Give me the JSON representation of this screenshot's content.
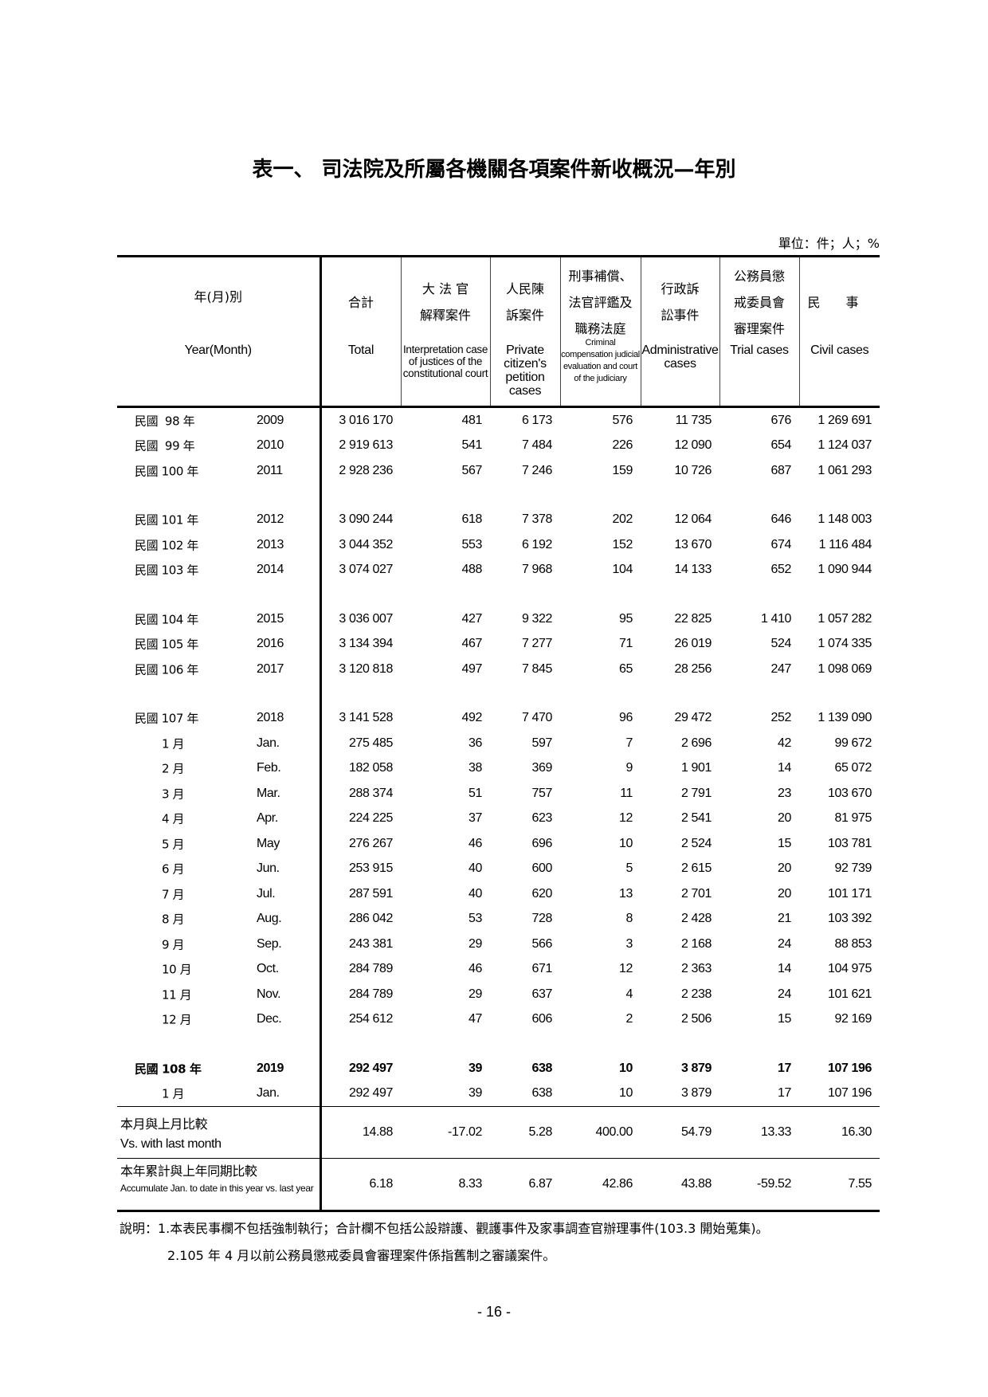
{
  "title": "表一、 司法院及所屬各機關各項案件新收概況—年別",
  "unit": "單位：件；人；%",
  "columns": [
    {
      "zh": "年(月)別",
      "en": "Year(Month)"
    },
    {
      "zh": "合計",
      "en": "Total"
    },
    {
      "zh": "大 法 官\n解釋案件",
      "en": "Interpretation case of justices of the constitutional court"
    },
    {
      "zh": "人民陳\n訴案件",
      "en": "Private citizen's petition cases"
    },
    {
      "zh": "刑事補償、\n法官評鑑及\n職務法庭",
      "en": "Criminal compensation judicial evaluation and court of the judiciary"
    },
    {
      "zh": "行政訴\n訟事件",
      "en": "Administrative cases"
    },
    {
      "zh": "公務員懲\n戒委員會\n審理案件",
      "en": "Trial cases"
    },
    {
      "zh": "民　　事",
      "en": "Civil cases"
    }
  ],
  "rows": [
    {
      "zh": "民國  98 年",
      "en": "2009",
      "values": [
        "3 016 170",
        "481",
        "6 173",
        "576",
        "11 735",
        "676",
        "1 269 691"
      ]
    },
    {
      "zh": "民國  99 年",
      "en": "2010",
      "values": [
        "2 919 613",
        "541",
        "7 484",
        "226",
        "12 090",
        "654",
        "1 124 037"
      ]
    },
    {
      "zh": "民國 100 年",
      "en": "2011",
      "values": [
        "2 928 236",
        "567",
        "7 246",
        "159",
        "10 726",
        "687",
        "1 061 293"
      ]
    },
    {
      "spacer": true
    },
    {
      "zh": "民國 101 年",
      "en": "2012",
      "values": [
        "3 090 244",
        "618",
        "7 378",
        "202",
        "12 064",
        "646",
        "1 148 003"
      ]
    },
    {
      "zh": "民國 102 年",
      "en": "2013",
      "values": [
        "3 044 352",
        "553",
        "6 192",
        "152",
        "13 670",
        "674",
        "1 116 484"
      ]
    },
    {
      "zh": "民國 103 年",
      "en": "2014",
      "values": [
        "3 074 027",
        "488",
        "7 968",
        "104",
        "14 133",
        "652",
        "1 090 944"
      ]
    },
    {
      "spacer": true
    },
    {
      "zh": "民國 104 年",
      "en": "2015",
      "values": [
        "3 036 007",
        "427",
        "9 322",
        "95",
        "22 825",
        "1 410",
        "1 057 282"
      ]
    },
    {
      "zh": "民國 105 年",
      "en": "2016",
      "values": [
        "3 134 394",
        "467",
        "7 277",
        "71",
        "26 019",
        "524",
        "1 074 335"
      ]
    },
    {
      "zh": "民國 106 年",
      "en": "2017",
      "values": [
        "3 120 818",
        "497",
        "7 845",
        "65",
        "28 256",
        "247",
        "1 098 069"
      ]
    },
    {
      "spacer": true
    },
    {
      "zh": "民國 107 年",
      "en": "2018",
      "values": [
        "3 141 528",
        "492",
        "7 470",
        "96",
        "29 472",
        "252",
        "1 139 090"
      ]
    },
    {
      "zh": "1 月",
      "en": "Jan.",
      "month": true,
      "values": [
        "275 485",
        "36",
        "597",
        "7",
        "2 696",
        "42",
        "99 672"
      ]
    },
    {
      "zh": "2 月",
      "en": "Feb.",
      "month": true,
      "values": [
        "182 058",
        "38",
        "369",
        "9",
        "1 901",
        "14",
        "65 072"
      ]
    },
    {
      "zh": "3 月",
      "en": "Mar.",
      "month": true,
      "values": [
        "288 374",
        "51",
        "757",
        "11",
        "2 791",
        "23",
        "103 670"
      ]
    },
    {
      "zh": "4 月",
      "en": "Apr.",
      "month": true,
      "values": [
        "224 225",
        "37",
        "623",
        "12",
        "2 541",
        "20",
        "81 975"
      ]
    },
    {
      "zh": "5 月",
      "en": "May",
      "month": true,
      "values": [
        "276 267",
        "46",
        "696",
        "10",
        "2 524",
        "15",
        "103 781"
      ]
    },
    {
      "zh": "6 月",
      "en": "Jun.",
      "month": true,
      "values": [
        "253 915",
        "40",
        "600",
        "5",
        "2 615",
        "20",
        "92 739"
      ]
    },
    {
      "zh": "7 月",
      "en": "Jul.",
      "month": true,
      "values": [
        "287 591",
        "40",
        "620",
        "13",
        "2 701",
        "20",
        "101 171"
      ]
    },
    {
      "zh": "8 月",
      "en": "Aug.",
      "month": true,
      "values": [
        "286 042",
        "53",
        "728",
        "8",
        "2 428",
        "21",
        "103 392"
      ]
    },
    {
      "zh": "9 月",
      "en": "Sep.",
      "month": true,
      "values": [
        "243 381",
        "29",
        "566",
        "3",
        "2 168",
        "24",
        "88 853"
      ]
    },
    {
      "zh": "10 月",
      "en": "Oct.",
      "month": true,
      "values": [
        "284 789",
        "46",
        "671",
        "12",
        "2 363",
        "14",
        "104 975"
      ]
    },
    {
      "zh": "11 月",
      "en": "Nov.",
      "month": true,
      "values": [
        "284 789",
        "29",
        "637",
        "4",
        "2 238",
        "24",
        "101 621"
      ]
    },
    {
      "zh": "12 月",
      "en": "Dec.",
      "month": true,
      "values": [
        "254 612",
        "47",
        "606",
        "2",
        "2 506",
        "15",
        "92 169"
      ]
    },
    {
      "spacer": true
    },
    {
      "zh": "民國 108 年",
      "en": "2019",
      "bold": true,
      "values": [
        "292 497",
        "39",
        "638",
        "10",
        "3 879",
        "17",
        "107 196"
      ]
    },
    {
      "zh": "1 月",
      "en": "Jan.",
      "month": true,
      "values": [
        "292 497",
        "39",
        "638",
        "10",
        "3 879",
        "17",
        "107 196"
      ]
    }
  ],
  "comparisons": [
    {
      "zh": "本月與上月比較",
      "en": "Vs. with last month",
      "values": [
        "14.88",
        "-17.02",
        "5.28",
        "400.00",
        "54.79",
        "13.33",
        "16.30"
      ]
    },
    {
      "zh": "本年累計與上年同期比較",
      "en": "Accumulate Jan. to date in this year vs.    last year",
      "values": [
        "6.18",
        "8.33",
        "6.87",
        "42.86",
        "43.88",
        "-59.52",
        "7.55"
      ]
    }
  ],
  "notes": [
    "說明：1.本表民事欄不包括強制執行；合計欄不包括公設辯護、觀護事件及家事調查官辦理事件(103.3 開始蒐集)。",
    "2.105 年 4 月以前公務員懲戒委員會審理案件係指舊制之審議案件。"
  ],
  "page_number": "- 16 -"
}
